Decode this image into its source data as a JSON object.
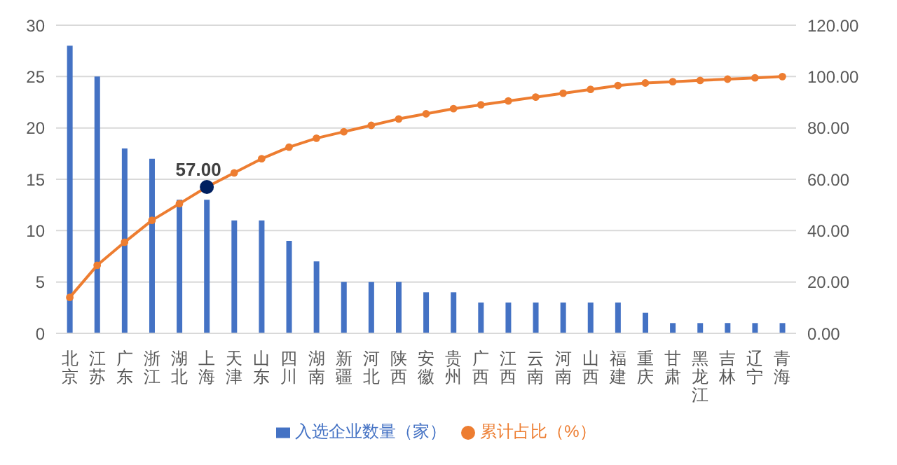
{
  "chart_data": {
    "type": "bar",
    "categories": [
      "北京",
      "江苏",
      "广东",
      "浙江",
      "湖北",
      "上海",
      "天津",
      "山东",
      "四川",
      "湖南",
      "新疆",
      "河北",
      "陕西",
      "安徽",
      "贵州",
      "广西",
      "江西",
      "云南",
      "河南",
      "山西",
      "福建",
      "重庆",
      "甘肃",
      "黑龙江",
      "吉林",
      "辽宁",
      "青海"
    ],
    "series": [
      {
        "name": "入选企业数量（家）",
        "color": "#4472c4",
        "values": [
          28,
          25,
          18,
          17,
          13,
          13,
          11,
          11,
          9,
          7,
          5,
          5,
          5,
          4,
          4,
          3,
          3,
          3,
          3,
          3,
          3,
          2,
          1,
          1,
          1,
          1,
          1
        ]
      },
      {
        "name": "累计占比（%）",
        "type": "line",
        "axis": "y2",
        "color": "#ed7d31",
        "colors": [
          "#ed7d31",
          "#ed7d31",
          "#ed7d31",
          "#ed7d31",
          "#ed7d31",
          "#002060",
          "#ed7d31",
          "#ed7d31",
          "#ed7d31",
          "#ed7d31",
          "#ed7d31",
          "#ed7d31",
          "#ed7d31",
          "#ed7d31",
          "#ed7d31",
          "#ed7d31",
          "#ed7d31",
          "#ed7d31",
          "#ed7d31",
          "#ed7d31",
          "#ed7d31",
          "#ed7d31",
          "#ed7d31",
          "#ed7d31",
          "#ed7d31",
          "#ed7d31",
          "#ed7d31"
        ],
        "values": [
          14,
          26.5,
          35.5,
          44,
          50.5,
          57,
          62.5,
          68,
          72.5,
          76,
          78.5,
          81,
          83.5,
          85.5,
          87.5,
          89,
          90.5,
          92,
          93.5,
          95,
          96.5,
          97.5,
          98,
          98.5,
          99,
          99.5,
          100
        ],
        "value_labels": [
          null,
          null,
          null,
          null,
          null,
          "57.00",
          null,
          null,
          null,
          null,
          null,
          null,
          null,
          null,
          null,
          null,
          null,
          null,
          null,
          null,
          null,
          null,
          null,
          null,
          null,
          null,
          null
        ]
      }
    ],
    "ylim": [
      0,
      30
    ],
    "yticks": [
      0,
      5,
      10,
      15,
      20,
      25,
      30
    ],
    "y2lim": [
      0,
      120
    ],
    "y2ticks": [
      {
        "value": 0,
        "label": "0.00"
      },
      {
        "value": 20,
        "label": "20.00"
      },
      {
        "value": 40,
        "label": "40.00"
      },
      {
        "value": 60,
        "label": "60.00"
      },
      {
        "value": 80,
        "label": "80.00"
      },
      {
        "value": 100,
        "label": "100.00"
      },
      {
        "value": 120,
        "label": "120.00"
      }
    ],
    "grid": "y",
    "legend": "bottom",
    "marker": "circle"
  }
}
